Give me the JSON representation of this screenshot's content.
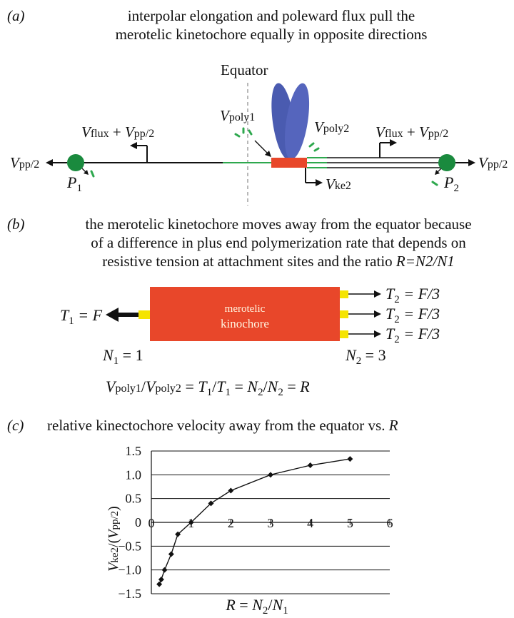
{
  "panel_a": {
    "label": "(a)",
    "caption_line1": "interpolar elongation and poleward flux pull the",
    "caption_line2": "merotelic kinetochore equally in opposite directions",
    "equator_label": "Equator",
    "vpoly1": {
      "v": "V",
      "sub": "poly1"
    },
    "vpoly2": {
      "v": "V",
      "sub": "poly2"
    },
    "left_flux": {
      "v1": "V",
      "s1": "flux",
      "plus": " + ",
      "v2": "V",
      "s2": "pp/2"
    },
    "right_flux": {
      "v1": "V",
      "s1": "flux",
      "plus": " + ",
      "v2": "V",
      "s2": "pp/2"
    },
    "left_vpp": {
      "v": "V",
      "sub": "pp/2"
    },
    "right_vpp": {
      "v": "V",
      "sub": "pp/2"
    },
    "p1": {
      "p": "P",
      "sub": "1"
    },
    "p2": {
      "p": "P",
      "sub": "2"
    },
    "vke2": {
      "v": "V",
      "sub": "ke2"
    },
    "colors": {
      "pole": "#1a8a3e",
      "kinetochore": "#e8472a",
      "chromosome": "#4a5bb0",
      "microtubule_green": "#2ea84e"
    }
  },
  "panel_b": {
    "label": "(b)",
    "caption_line1": "the merotelic kinetochore moves away from the equator because",
    "caption_line2": "of a difference in plus end polymerization rate that depends on",
    "caption_line3_prefix": "resistive tension at attachment sites and the ratio ",
    "caption_line3_ratio": "R=N2/N1",
    "box_line1": "merotelic",
    "box_line2": "kinochore",
    "t1": {
      "t": "T",
      "sub": "1",
      "rest": " = F"
    },
    "t2_rows": [
      {
        "t": "T",
        "sub": "2",
        "rest": " = F/3"
      },
      {
        "t": "T",
        "sub": "2",
        "rest": " = F/3"
      },
      {
        "t": "T",
        "sub": "2",
        "rest": " = F/3"
      }
    ],
    "n1": {
      "n": "N",
      "sub": "1",
      "rest": " = 1"
    },
    "n2": {
      "n": "N",
      "sub": "2",
      "rest": " = 3"
    },
    "equation": {
      "a": "V",
      "as": "poly1",
      "slash": "/",
      "b": "V",
      "bs": "poly2",
      "eq1": " = ",
      "c": "T",
      "cs": "1",
      "slash2": "/",
      "d": "T",
      "ds": "1",
      "eq2": " = ",
      "e": "N",
      "es": "2",
      "slash3": "/",
      "f": "N",
      "fs": "2",
      "eq3": " = ",
      "g": "R"
    },
    "colors": {
      "box": "#e8472a",
      "attachment": "#f5e400"
    }
  },
  "panel_c": {
    "label": "(c)",
    "caption_prefix": "relative kinectochore velocity away from the equator vs. ",
    "caption_r": "R",
    "ylabel": {
      "v": "V",
      "vs": "ke2",
      "mid": "/(",
      "v2": "V",
      "v2s": "pp/2",
      "end": ")"
    },
    "xlabel": {
      "r": "R",
      "eq": " = ",
      "n": "N",
      "ns": "2",
      "slash": "/",
      "m": "N",
      "ms": "1"
    }
  },
  "chart_data": {
    "type": "line",
    "title": "",
    "xlabel": "R = N2/N1",
    "ylabel": "Vke2/(Vpp/2)",
    "xlim": [
      0,
      6
    ],
    "ylim": [
      -1.5,
      1.5
    ],
    "x_ticks": [
      "0",
      "1",
      "2",
      "3",
      "4",
      "5",
      "6"
    ],
    "y_ticks": [
      "1.5",
      "1.0",
      "0.5",
      "0",
      "-0.5",
      "-1.0",
      "-1.5"
    ],
    "grid": "horizontal",
    "series": [
      {
        "x": [
          0.2,
          0.25,
          0.333,
          0.5,
          0.667,
          1,
          1.5,
          2,
          3,
          4,
          5
        ],
        "y": [
          -1.3,
          -1.2,
          -1.0,
          -0.667,
          -0.25,
          0,
          0.4,
          0.667,
          1.0,
          1.2,
          1.333
        ]
      }
    ]
  }
}
